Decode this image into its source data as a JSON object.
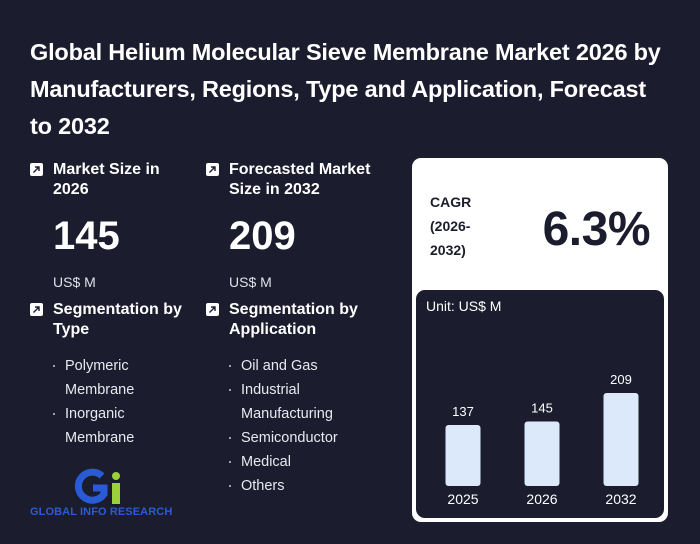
{
  "title": "Global Helium Molecular Sieve Membrane Market 2026 by Manufacturers, Regions, Type and Application, Forecast to 2032",
  "market_size": {
    "label": "Market Size in 2026",
    "value": "145",
    "unit": "US$ M"
  },
  "forecast_size": {
    "label": "Forecasted Market Size in 2032",
    "value": "209",
    "unit": "US$ M"
  },
  "segmentation_type": {
    "label": "Segmentation by Type",
    "items": [
      "Polymeric Membrane",
      "Inorganic Membrane"
    ]
  },
  "segmentation_application": {
    "label": "Segmentation by Application",
    "items": [
      "Oil and Gas",
      "Industrial Manufacturing",
      "Semiconductor",
      "Medical",
      "Others"
    ]
  },
  "cagr": {
    "label": "CAGR (2026-2032)",
    "value": "6.3%"
  },
  "logo": {
    "text": "GLOBAL INFO RESEARCH"
  },
  "colors": {
    "background": "#1b1c2e",
    "bar": "#dbe9fb",
    "logo_blue": "#2a5bd7",
    "logo_green": "#9bd13a"
  },
  "chart_data": {
    "type": "bar",
    "unit_label": "Unit: US$ M",
    "categories": [
      "2025",
      "2026",
      "2032"
    ],
    "values": [
      137,
      145,
      209
    ],
    "ylim": [
      0,
      209
    ],
    "grid": false
  }
}
